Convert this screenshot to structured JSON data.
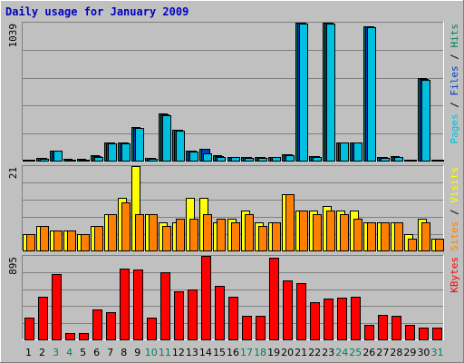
{
  "colors": {
    "background": "#c0c0c0",
    "title": "#0000c0",
    "hits": "#00805c",
    "files": "#0040c0",
    "pages": "#00c0e0",
    "visits": "#ffff00",
    "sites": "#ff8000",
    "kbytes": "#ff0000",
    "weekday_label": "#000000",
    "weekend_label": "#00805c",
    "grid": "#808080"
  },
  "chart_data": {
    "type": "bar",
    "title": "Daily usage for January 2009",
    "categories": [
      "1",
      "2",
      "3",
      "4",
      "5",
      "6",
      "7",
      "8",
      "9",
      "10",
      "11",
      "12",
      "13",
      "14",
      "15",
      "16",
      "17",
      "18",
      "19",
      "20",
      "21",
      "22",
      "23",
      "24",
      "25",
      "26",
      "27",
      "28",
      "29",
      "30",
      "31"
    ],
    "weekend_days": [
      "3",
      "4",
      "10",
      "11",
      "17",
      "18",
      "24",
      "25",
      "31"
    ],
    "panels": [
      {
        "name": "hits-files-pages",
        "ymax_label": "1039",
        "ymax": 1039,
        "legend": [
          {
            "name": "Pages",
            "color": "#00c0e0"
          },
          {
            "name": "Files",
            "color": "#0040c0"
          },
          {
            "name": "Hits",
            "color": "#00805c"
          }
        ],
        "series": [
          {
            "name": "Hits",
            "color": "#00805c",
            "values": [
              10,
              20,
              78,
              12,
              12,
              40,
              136,
              136,
              250,
              20,
              353,
              234,
              78,
              92,
              38,
              30,
              28,
              26,
              30,
              50,
              1039,
              36,
              1039,
              140,
              140,
              1012,
              30,
              32,
              10,
              620,
              10
            ]
          },
          {
            "name": "Files",
            "color": "#0040c0",
            "values": [
              8,
              18,
              76,
              10,
              10,
              36,
              134,
              134,
              248,
              18,
              350,
              232,
              74,
              90,
              34,
              28,
              26,
              24,
              28,
              46,
              1036,
              34,
              1036,
              138,
              138,
              1010,
              26,
              30,
              8,
              616,
              8
            ]
          },
          {
            "name": "Pages",
            "color": "#00c0e0",
            "values": [
              5,
              15,
              72,
              8,
              8,
              30,
              130,
              130,
              244,
              15,
              344,
              228,
              65,
              56,
              30,
              24,
              22,
              20,
              24,
              40,
              1030,
              30,
              1030,
              134,
              134,
              1004,
              20,
              26,
              5,
              610,
              5
            ]
          }
        ]
      },
      {
        "name": "visits-sites",
        "ymax_label": "21",
        "ymax": 21,
        "legend": [
          {
            "name": "Sites",
            "color": "#ff8000"
          },
          {
            "name": "Visits",
            "color": "#ffff00"
          }
        ],
        "series": [
          {
            "name": "Visits",
            "color": "#ffff00",
            "values": [
              4,
              6,
              5,
              5,
              4,
              6,
              9,
              13,
              21,
              9,
              7,
              7,
              13,
              13,
              7,
              8,
              10,
              7,
              7,
              14,
              10,
              10,
              11,
              10,
              10,
              7,
              7,
              7,
              4,
              8,
              3
            ]
          },
          {
            "name": "Sites",
            "color": "#ff8000",
            "values": [
              4,
              6,
              5,
              5,
              4,
              6,
              9,
              12,
              9,
              9,
              6,
              8,
              8,
              9,
              8,
              7,
              9,
              6,
              7,
              14,
              10,
              9,
              10,
              9,
              8,
              7,
              7,
              7,
              3,
              7,
              3
            ]
          }
        ]
      },
      {
        "name": "kbytes",
        "ymax_label": "895",
        "ymax": 895,
        "legend": [
          {
            "name": "KBytes",
            "color": "#ff0000"
          }
        ],
        "series": [
          {
            "name": "KBytes",
            "color": "#ff0000",
            "values": [
              235,
              459,
              703,
              71,
              71,
              325,
              296,
              761,
              749,
              235,
              721,
              519,
              539,
              895,
              575,
              460,
              250,
              250,
              880,
              637,
              607,
              401,
              439,
              449,
              457,
              151,
              264,
              251,
              151,
              131,
              131
            ]
          }
        ]
      }
    ]
  }
}
